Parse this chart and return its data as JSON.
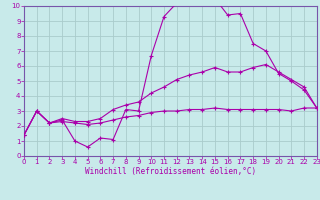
{
  "xlabel": "Windchill (Refroidissement éolien,°C)",
  "background_color": "#c8eaea",
  "grid_color": "#aacccc",
  "line_color": "#aa00aa",
  "spine_color": "#7755aa",
  "xlim": [
    0,
    23
  ],
  "ylim": [
    0,
    10
  ],
  "xticks": [
    0,
    1,
    2,
    3,
    4,
    5,
    6,
    7,
    8,
    9,
    10,
    11,
    12,
    13,
    14,
    15,
    16,
    17,
    18,
    19,
    20,
    21,
    22,
    23
  ],
  "yticks": [
    0,
    1,
    2,
    3,
    4,
    5,
    6,
    7,
    8,
    9,
    10
  ],
  "line1_x": [
    0,
    1,
    2,
    3,
    4,
    5,
    6,
    7,
    8,
    9,
    10,
    11,
    12,
    13,
    14,
    15,
    16,
    17,
    18,
    19,
    20,
    21,
    22,
    23
  ],
  "line1_y": [
    1.4,
    3.0,
    2.2,
    2.4,
    1.0,
    0.6,
    1.2,
    1.1,
    3.1,
    3.0,
    6.7,
    9.3,
    10.2,
    10.5,
    10.5,
    10.5,
    9.4,
    9.5,
    7.5,
    7.0,
    5.5,
    5.0,
    4.4,
    3.2
  ],
  "line2_x": [
    0,
    1,
    2,
    3,
    4,
    5,
    6,
    7,
    8,
    9,
    10,
    11,
    12,
    13,
    14,
    15,
    16,
    17,
    18,
    19,
    20,
    21,
    22,
    23
  ],
  "line2_y": [
    1.4,
    3.0,
    2.2,
    2.5,
    2.3,
    2.3,
    2.5,
    3.1,
    3.4,
    3.6,
    4.2,
    4.6,
    5.1,
    5.4,
    5.6,
    5.9,
    5.6,
    5.6,
    5.9,
    6.1,
    5.6,
    5.1,
    4.6,
    3.2
  ],
  "line3_x": [
    0,
    1,
    2,
    3,
    4,
    5,
    6,
    7,
    8,
    9,
    10,
    11,
    12,
    13,
    14,
    15,
    16,
    17,
    18,
    19,
    20,
    21,
    22,
    23
  ],
  "line3_y": [
    1.4,
    3.0,
    2.2,
    2.3,
    2.2,
    2.1,
    2.2,
    2.4,
    2.6,
    2.7,
    2.9,
    3.0,
    3.0,
    3.1,
    3.1,
    3.2,
    3.1,
    3.1,
    3.1,
    3.1,
    3.1,
    3.0,
    3.2,
    3.2
  ],
  "tick_fontsize": 5.0,
  "xlabel_fontsize": 5.5
}
